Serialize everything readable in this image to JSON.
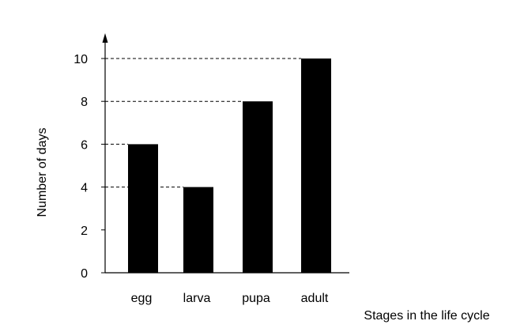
{
  "chart_data": {
    "type": "bar",
    "title": "",
    "categories": [
      "egg",
      "larva",
      "pupa",
      "adult"
    ],
    "values": [
      6,
      4,
      8,
      10
    ],
    "xlabel": "Stages in the life cycle",
    "ylabel": "Number of days",
    "ylim": [
      0,
      10
    ],
    "yticks": [
      "0",
      "2",
      "4",
      "6",
      "8",
      "10"
    ],
    "grid": false,
    "legend": "none",
    "bar_color": "#000000",
    "reference_lines": "dashed lines from y-axis to top of each bar"
  }
}
